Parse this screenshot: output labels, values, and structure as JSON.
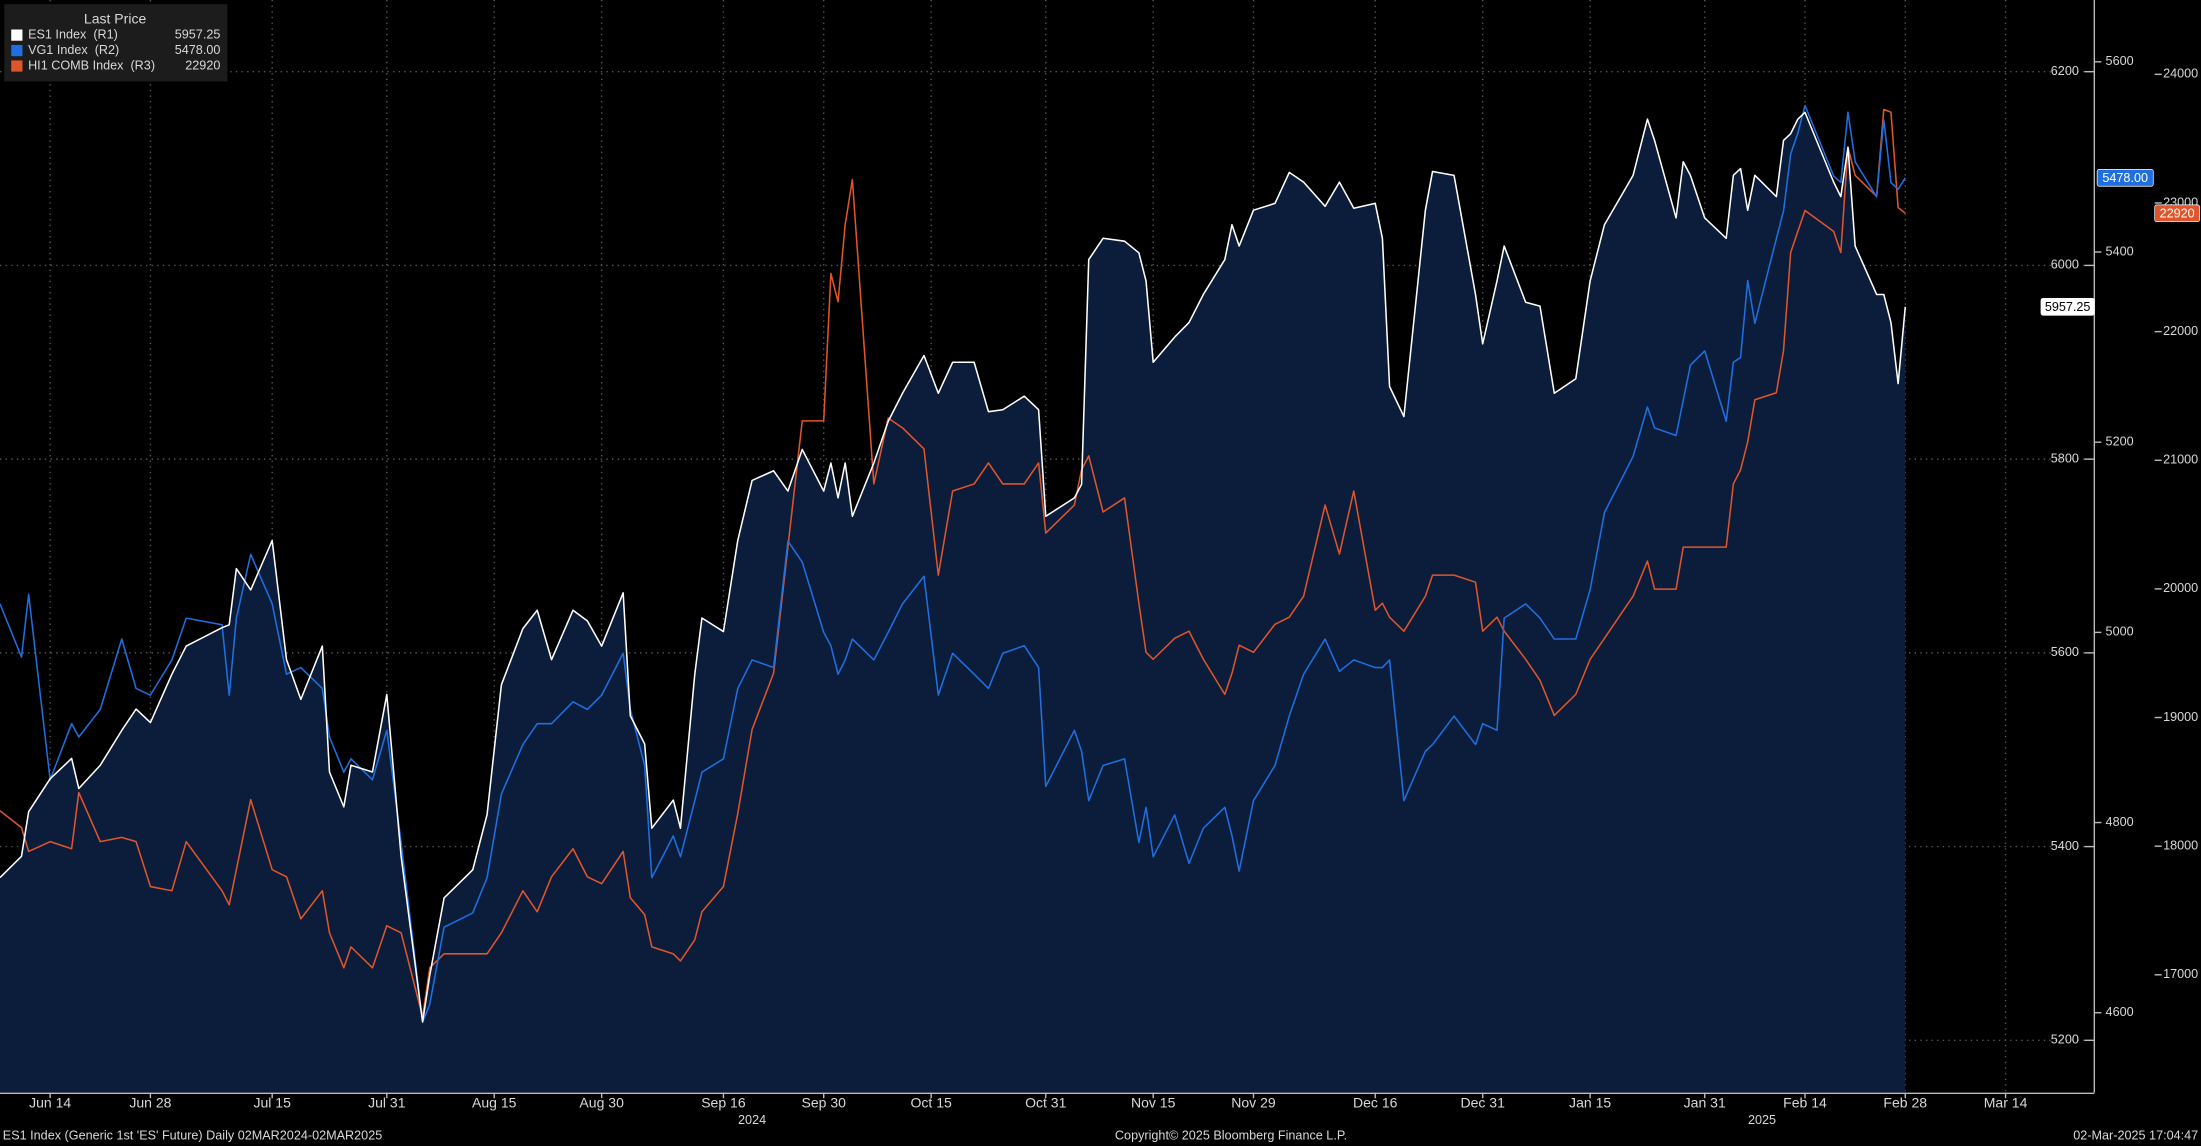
{
  "chart_data": {
    "type": "line",
    "legend_title": "Last Price",
    "legend": "top-left",
    "grid": true,
    "xlim": [
      "2024-06-07",
      "2025-03-26"
    ],
    "xticks": [
      {
        "value": "2024-06-14",
        "label": "Jun 14"
      },
      {
        "value": "2024-06-28",
        "label": "Jun 28"
      },
      {
        "value": "2024-07-15",
        "label": "Jul 15"
      },
      {
        "value": "2024-07-31",
        "label": "Jul 31"
      },
      {
        "value": "2024-08-15",
        "label": "Aug 15"
      },
      {
        "value": "2024-08-30",
        "label": "Aug 30"
      },
      {
        "value": "2024-09-16",
        "label": "Sep 16"
      },
      {
        "value": "2024-09-30",
        "label": "Sep 30"
      },
      {
        "value": "2024-10-15",
        "label": "Oct 15"
      },
      {
        "value": "2024-10-31",
        "label": "Oct 31"
      },
      {
        "value": "2024-11-15",
        "label": "Nov 15"
      },
      {
        "value": "2024-11-29",
        "label": "Nov 29"
      },
      {
        "value": "2024-12-16",
        "label": "Dec 16"
      },
      {
        "value": "2024-12-31",
        "label": "Dec 31"
      },
      {
        "value": "2025-01-15",
        "label": "Jan 15"
      },
      {
        "value": "2025-01-31",
        "label": "Jan 31"
      },
      {
        "value": "2025-02-14",
        "label": "Feb 14"
      },
      {
        "value": "2025-02-28",
        "label": "Feb 28"
      },
      {
        "value": "2025-03-14",
        "label": "Mar 14"
      }
    ],
    "year_labels": [
      {
        "value": "2024-09-20",
        "label": "2024"
      },
      {
        "value": "2025-02-08",
        "label": "2025"
      }
    ],
    "ylim": [
      5146,
      6274
    ],
    "yticks": [
      5200,
      5400,
      5600,
      5800,
      6000,
      6200
    ],
    "y2lim": [
      4516,
      5665
    ],
    "y2ticks": [
      4600,
      4800,
      5000,
      5200,
      5400,
      5600
    ],
    "y3lim": [
      16084,
      24578
    ],
    "y3ticks": [
      17000,
      18000,
      19000,
      20000,
      21000,
      22000,
      23000,
      24000
    ],
    "x": [
      "2024-06-07",
      "2024-06-10",
      "2024-06-11",
      "2024-06-14",
      "2024-06-17",
      "2024-06-18",
      "2024-06-21",
      "2024-06-24",
      "2024-06-26",
      "2024-06-28",
      "2024-07-01",
      "2024-07-03",
      "2024-07-08",
      "2024-07-09",
      "2024-07-10",
      "2024-07-12",
      "2024-07-15",
      "2024-07-17",
      "2024-07-19",
      "2024-07-22",
      "2024-07-23",
      "2024-07-25",
      "2024-07-26",
      "2024-07-29",
      "2024-07-31",
      "2024-08-02",
      "2024-08-05",
      "2024-08-06",
      "2024-08-08",
      "2024-08-12",
      "2024-08-14",
      "2024-08-16",
      "2024-08-19",
      "2024-08-21",
      "2024-08-23",
      "2024-08-26",
      "2024-08-28",
      "2024-08-30",
      "2024-09-02",
      "2024-09-03",
      "2024-09-05",
      "2024-09-06",
      "2024-09-09",
      "2024-09-10",
      "2024-09-12",
      "2024-09-13",
      "2024-09-16",
      "2024-09-18",
      "2024-09-20",
      "2024-09-23",
      "2024-09-25",
      "2024-09-27",
      "2024-09-30",
      "2024-10-01",
      "2024-10-02",
      "2024-10-03",
      "2024-10-04",
      "2024-10-07",
      "2024-10-09",
      "2024-10-11",
      "2024-10-14",
      "2024-10-16",
      "2024-10-18",
      "2024-10-21",
      "2024-10-23",
      "2024-10-25",
      "2024-10-28",
      "2024-10-30",
      "2024-10-31",
      "2024-11-04",
      "2024-11-05",
      "2024-11-06",
      "2024-11-08",
      "2024-11-11",
      "2024-11-13",
      "2024-11-14",
      "2024-11-15",
      "2024-11-18",
      "2024-11-20",
      "2024-11-22",
      "2024-11-25",
      "2024-11-26",
      "2024-11-27",
      "2024-11-29",
      "2024-12-02",
      "2024-12-04",
      "2024-12-06",
      "2024-12-09",
      "2024-12-11",
      "2024-12-13",
      "2024-12-16",
      "2024-12-17",
      "2024-12-18",
      "2024-12-20",
      "2024-12-23",
      "2024-12-24",
      "2024-12-27",
      "2024-12-30",
      "2024-12-31",
      "2025-01-02",
      "2025-01-03",
      "2025-01-06",
      "2025-01-08",
      "2025-01-10",
      "2025-01-13",
      "2025-01-15",
      "2025-01-17",
      "2025-01-21",
      "2025-01-23",
      "2025-01-24",
      "2025-01-27",
      "2025-01-28",
      "2025-01-29",
      "2025-01-31",
      "2025-02-03",
      "2025-02-04",
      "2025-02-05",
      "2025-02-06",
      "2025-02-07",
      "2025-02-10",
      "2025-02-11",
      "2025-02-12",
      "2025-02-13",
      "2025-02-14",
      "2025-02-18",
      "2025-02-19",
      "2025-02-20",
      "2025-02-21",
      "2025-02-24",
      "2025-02-25",
      "2025-02-26",
      "2025-02-27",
      "2025-02-28"
    ],
    "series": [
      {
        "name": "ES1 Index  (R1)",
        "color": "#ffffff",
        "area": true,
        "fill_color": "#0b1d3a",
        "axis": "y",
        "last_label": "5957.25",
        "values": [
          5368,
          5390,
          5436,
          5470,
          5491,
          5460,
          5484,
          5520,
          5542,
          5528,
          5578,
          5607,
          5626,
          5629,
          5687,
          5665,
          5716,
          5593,
          5552,
          5607,
          5477,
          5441,
          5484,
          5477,
          5557,
          5390,
          5219,
          5267,
          5347,
          5376,
          5433,
          5567,
          5625,
          5644,
          5593,
          5644,
          5633,
          5607,
          5662,
          5535,
          5506,
          5419,
          5448,
          5419,
          5578,
          5636,
          5622,
          5716,
          5778,
          5788,
          5767,
          5810,
          5767,
          5796,
          5760,
          5796,
          5741,
          5796,
          5839,
          5868,
          5907,
          5868,
          5900,
          5900,
          5849,
          5851,
          5865,
          5851,
          5741,
          5760,
          5774,
          6006,
          6028,
          6025,
          6013,
          5984,
          5900,
          5926,
          5941,
          5970,
          6006,
          6042,
          6020,
          6057,
          6064,
          6096,
          6086,
          6061,
          6086,
          6059,
          6064,
          6028,
          5875,
          5844,
          6057,
          6097,
          6093,
          5970,
          5919,
          5984,
          6020,
          5962,
          5958,
          5868,
          5883,
          5984,
          6042,
          6093,
          6151,
          6129,
          6049,
          6107,
          6093,
          6049,
          6028,
          6093,
          6100,
          6057,
          6093,
          6071,
          6129,
          6136,
          6151,
          6158,
          6086,
          6071,
          6122,
          6020,
          5970,
          5970,
          5941,
          5878,
          5957.25
        ]
      },
      {
        "name": "VG1 Index  (R2)",
        "color": "#1f6fe0",
        "axis": "y2",
        "last_label": "5478.00",
        "values": [
          5030,
          4974,
          5040,
          4845,
          4904,
          4890,
          4919,
          4993,
          4941,
          4934,
          4971,
          5015,
          5008,
          4934,
          5015,
          5082,
          5030,
          4956,
          4963,
          4941,
          4890,
          4853,
          4867,
          4845,
          4897,
          4779,
          4590,
          4609,
          4690,
          4705,
          4742,
          4830,
          4882,
          4904,
          4904,
          4927,
          4919,
          4934,
          4978,
          4919,
          4860,
          4742,
          4786,
          4764,
          4823,
          4853,
          4867,
          4941,
          4971,
          4963,
          5096,
          5074,
          5000,
          4986,
          4956,
          4971,
          4993,
          4971,
          5000,
          5030,
          5059,
          4934,
          4978,
          4956,
          4941,
          4978,
          4986,
          4963,
          4838,
          4897,
          4875,
          4823,
          4860,
          4867,
          4779,
          4816,
          4764,
          4808,
          4757,
          4794,
          4816,
          4786,
          4749,
          4823,
          4860,
          4912,
          4956,
          4993,
          4959,
          4971,
          4963,
          4963,
          4971,
          4823,
          4875,
          4882,
          4912,
          4882,
          4904,
          4897,
          5015,
          5030,
          5015,
          4993,
          4993,
          5045,
          5126,
          5185,
          5237,
          5215,
          5207,
          5244,
          5281,
          5296,
          5222,
          5284,
          5289,
          5370,
          5325,
          5414,
          5443,
          5503,
          5525,
          5554,
          5480,
          5473,
          5547,
          5495,
          5458,
          5539,
          5473,
          5466,
          5478
        ]
      },
      {
        "name": "HI1 COMB Index  (R3)",
        "color": "#e0552b",
        "axis": "y3",
        "last_label": "22920",
        "values": [
          18275,
          18144,
          17959,
          18035,
          17980,
          18417,
          18035,
          18068,
          18035,
          17686,
          17653,
          18035,
          17653,
          17544,
          17817,
          18362,
          17817,
          17762,
          17435,
          17653,
          17326,
          17054,
          17217,
          17054,
          17381,
          17326,
          16672,
          17054,
          17163,
          17163,
          17163,
          17326,
          17653,
          17490,
          17762,
          17980,
          17762,
          17708,
          17959,
          17599,
          17468,
          17217,
          17163,
          17108,
          17272,
          17490,
          17686,
          18253,
          18907,
          19344,
          20325,
          21306,
          21306,
          22451,
          22233,
          22833,
          23182,
          20816,
          21328,
          21252,
          21088,
          20107,
          20761,
          20816,
          20979,
          20816,
          20816,
          20979,
          20434,
          20652,
          20925,
          21034,
          20598,
          20707,
          19889,
          19507,
          19453,
          19616,
          19671,
          19453,
          19180,
          19344,
          19562,
          19507,
          19725,
          19780,
          19943,
          20652,
          20271,
          20761,
          19834,
          19889,
          19780,
          19671,
          19943,
          20107,
          20107,
          20052,
          19671,
          19780,
          19671,
          19453,
          19289,
          19016,
          19180,
          19453,
          19616,
          19943,
          20216,
          19998,
          19998,
          20325,
          20325,
          20325,
          20325,
          20816,
          20925,
          21143,
          21470,
          21525,
          21852,
          22615,
          22779,
          22942,
          22779,
          22615,
          23433,
          23215,
          23051,
          23727,
          23706,
          22964,
          22920
        ]
      }
    ],
    "footer": {
      "left": "ES1 Index (Generic 1st 'ES' Future)  Daily 02MAR2024-02MAR2025",
      "center": "Copyright© 2025 Bloomberg Finance L.P.",
      "right": "02-Mar-2025 17:04:47"
    }
  }
}
